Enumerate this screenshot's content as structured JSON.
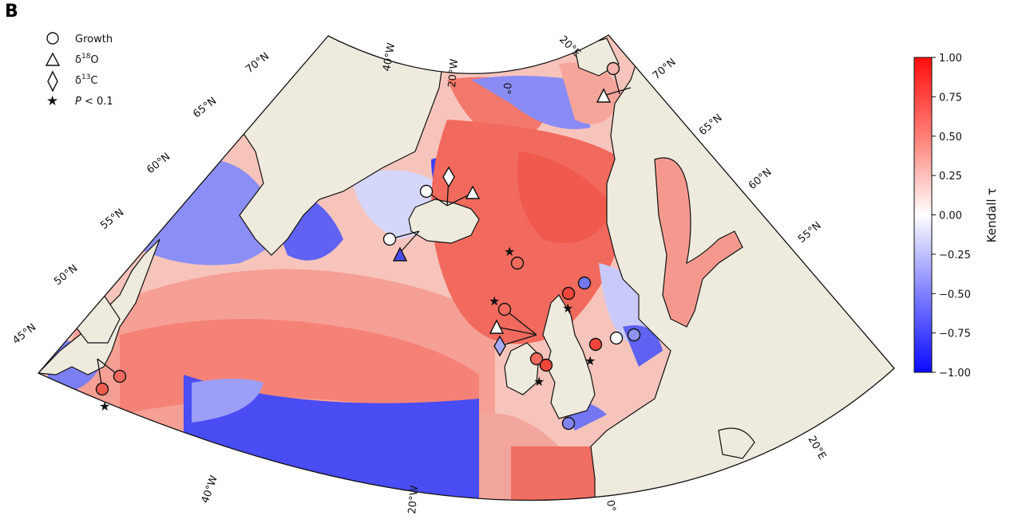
{
  "panel_label": "B",
  "legend": {
    "items": [
      {
        "symbol": "circle",
        "label": "Growth"
      },
      {
        "symbol": "triangle",
        "label": "δ¹⁸O",
        "base": "δ",
        "sup": "18",
        "tail": "O"
      },
      {
        "symbol": "diamond",
        "label": "δ¹³C",
        "base": "δ",
        "sup": "13",
        "tail": "C"
      },
      {
        "symbol": "star",
        "label": "P < 0.1",
        "italic": "P",
        "tail": " < 0.1"
      }
    ]
  },
  "colorbar": {
    "title": "Kendall τ",
    "range": [
      -1.0,
      1.0
    ],
    "ticks": [
      "1.00",
      "0.75",
      "0.50",
      "0.25",
      "0.00",
      "−0.25",
      "−0.50",
      "−0.75",
      "−1.00"
    ],
    "colors": {
      "max": "#ff0d0d",
      "mid": "#ffffff",
      "min": "#0a0aff"
    }
  },
  "map": {
    "land_color": "#eeeade",
    "lat_labels": [
      "70°N",
      "65°N",
      "60°N",
      "55°N",
      "50°N",
      "45°N"
    ],
    "lat_labels_right": [
      "70°N",
      "65°N",
      "60°N",
      "55°N"
    ],
    "lon_labels_top": [
      "40°W",
      "20°W",
      "0°",
      "20°E"
    ],
    "lon_labels_bottom": [
      "40°W",
      "20°W",
      "0°",
      "20°E"
    ]
  },
  "sites": [
    {
      "name": "svalbard-north",
      "symbol": "circle",
      "tau": 0.3,
      "sig": false
    },
    {
      "name": "norway-triangle",
      "symbol": "triangle",
      "tau": 0.0,
      "sig": false
    },
    {
      "name": "iceland-north-circle",
      "symbol": "circle",
      "tau": 0.0,
      "sig": false
    },
    {
      "name": "iceland-north-diamond",
      "symbol": "diamond",
      "tau": 0.0,
      "sig": false
    },
    {
      "name": "iceland-north-triangle",
      "symbol": "triangle",
      "tau": 0.0,
      "sig": false
    },
    {
      "name": "iceland-west-circle",
      "symbol": "circle",
      "tau": 0.0,
      "sig": false
    },
    {
      "name": "iceland-west-triangle",
      "symbol": "triangle",
      "tau": -0.7,
      "sig": false
    },
    {
      "name": "faroe-circle",
      "symbol": "circle",
      "tau": 0.7,
      "sig": true
    },
    {
      "name": "scotland-w-circle",
      "symbol": "circle",
      "tau": 0.7,
      "sig": true
    },
    {
      "name": "scotland-w-triangle",
      "symbol": "triangle",
      "tau": 0.0,
      "sig": false
    },
    {
      "name": "scotland-w-diamond",
      "symbol": "diamond",
      "tau": -0.4,
      "sig": false
    },
    {
      "name": "irish-sea-circle-1",
      "symbol": "circle",
      "tau": 0.7,
      "sig": false
    },
    {
      "name": "irish-sea-circle-2",
      "symbol": "circle",
      "tau": 0.9,
      "sig": true
    },
    {
      "name": "north-sea-circle-red",
      "symbol": "circle",
      "tau": 0.85,
      "sig": true
    },
    {
      "name": "north-sea-circle-blue",
      "symbol": "circle",
      "tau": -0.55,
      "sig": false
    },
    {
      "name": "north-sea-south-circle",
      "symbol": "circle",
      "tau": 0.85,
      "sig": true
    },
    {
      "name": "german-bight-circle-white",
      "symbol": "circle",
      "tau": 0.0,
      "sig": false
    },
    {
      "name": "german-bight-circle-blue",
      "symbol": "circle",
      "tau": -0.45,
      "sig": false
    },
    {
      "name": "channel-circle",
      "symbol": "circle",
      "tau": -0.5,
      "sig": false
    },
    {
      "name": "newfoundland-circle-1",
      "symbol": "circle",
      "tau": 0.75,
      "sig": true
    },
    {
      "name": "newfoundland-circle-2",
      "symbol": "circle",
      "tau": 0.7,
      "sig": false
    }
  ]
}
